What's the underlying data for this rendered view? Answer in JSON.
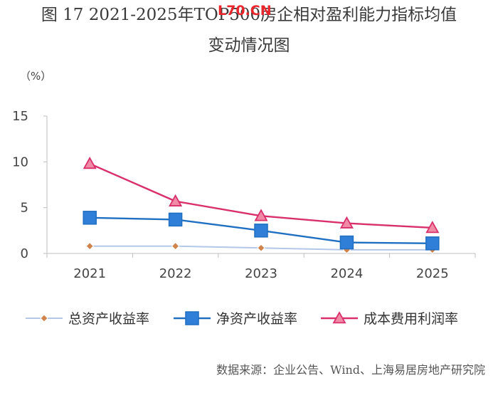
{
  "title_line1": "图 17 2021-2025年TOP500房企相对盈利能力指标均值",
  "title_line2": "变动情况图",
  "watermark": "L70.CN",
  "source": "数据来源：企业公告、Wind、上海易居房地产研究院",
  "chart_data": {
    "type": "line",
    "unit_label": "（%）",
    "categories": [
      "2021",
      "2022",
      "2023",
      "2024",
      "2025"
    ],
    "ylim": [
      0,
      15
    ],
    "yticks": [
      0,
      5,
      10,
      15
    ],
    "grid": false,
    "legend_position": "bottom",
    "series": [
      {
        "name": "总资产收益率",
        "values": [
          0.8,
          0.8,
          0.6,
          0.4,
          0.4
        ],
        "color": "#b4c7e7",
        "marker": "diamond",
        "marker_color": "#d0834a"
      },
      {
        "name": "净资产收益率",
        "values": [
          3.9,
          3.7,
          2.5,
          1.2,
          1.1
        ],
        "color": "#1f6fc2",
        "marker": "square",
        "marker_color": "#2f7fd8"
      },
      {
        "name": "成本费用利润率",
        "values": [
          9.8,
          5.7,
          4.1,
          3.3,
          2.8
        ],
        "color": "#d9306b",
        "marker": "triangle",
        "marker_color": "#f08aa6"
      }
    ]
  }
}
